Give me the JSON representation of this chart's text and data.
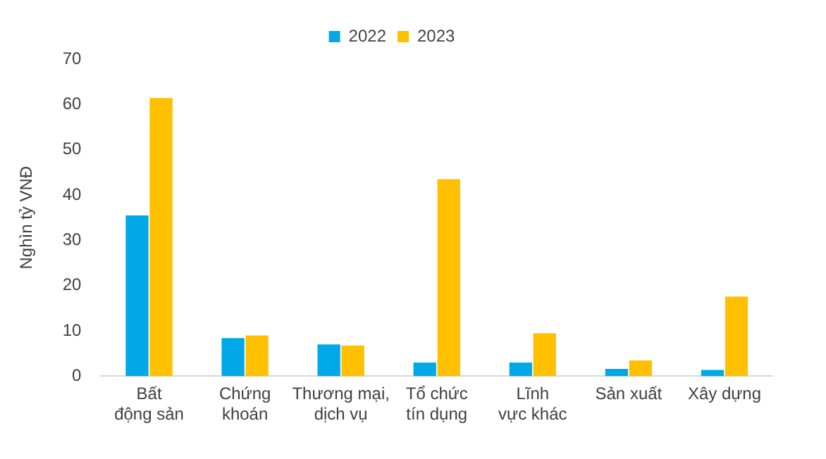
{
  "chart_data": {
    "type": "bar",
    "ylabel": "Nghìn tỷ VNĐ",
    "categories": [
      "Bất động sản",
      "Chứng khoán",
      "Thương mại, dịch vụ",
      "Tổ chức tín dụng",
      "Lĩnh vực khác",
      "Sản xuất",
      "Xây dựng"
    ],
    "series": [
      {
        "name": "2022",
        "color": "#00a8e8",
        "values": [
          35.5,
          8.4,
          7.0,
          3.0,
          3.0,
          1.6,
          1.4
        ]
      },
      {
        "name": "2023",
        "color": "#ffc000",
        "values": [
          61.4,
          9.0,
          6.8,
          43.5,
          9.5,
          3.5,
          17.6
        ]
      }
    ],
    "ylim": [
      0,
      70
    ],
    "yticks": [
      0,
      10,
      20,
      30,
      40,
      50,
      60,
      70
    ],
    "grid": false,
    "legend": "top"
  }
}
